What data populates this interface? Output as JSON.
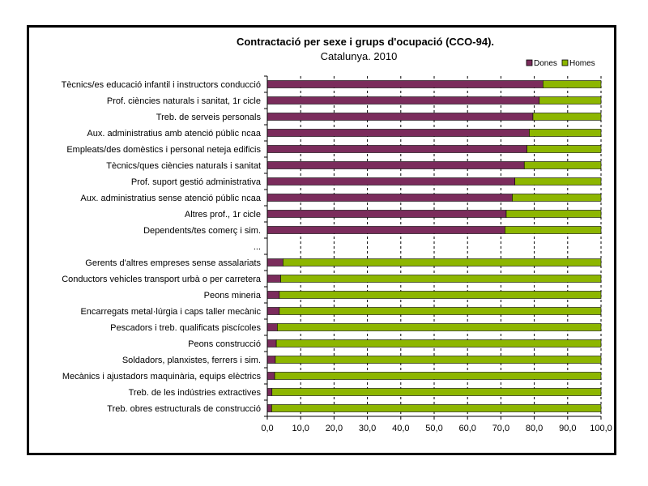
{
  "chart_data": {
    "type": "bar",
    "orientation": "horizontal",
    "stacked": true,
    "title": "Contractació per sexe i grups d'ocupació (CCO-94).",
    "subtitle": "Catalunya. 2010",
    "xlim": [
      0,
      100
    ],
    "x_ticks": [
      "0,0",
      "10,0",
      "20,0",
      "30,0",
      "40,0",
      "50,0",
      "60,0",
      "70,0",
      "80,0",
      "90,0",
      "100,0"
    ],
    "grid": "vertical dashed",
    "legend_position": "top-right",
    "categories": [
      "Tècnics/es educació infantil i instructors conducció",
      "Prof. ciències naturals i sanitat, 1r cicle",
      "Treb. de serveis personals",
      "Aux. administratius amb atenció públic ncaa",
      "Empleats/des domèstics i personal neteja edificis",
      "Tècnics/ques ciències naturals i sanitat",
      "Prof. suport gestió administrativa",
      "Aux. administratius sense atenció públic ncaa",
      "Altres prof., 1r cicle",
      "Dependents/tes comerç i sim.",
      "...",
      "Gerents d'altres empreses sense assalariats",
      "Conductors vehicles transport urbà o per carretera",
      "Peons mineria",
      "Encarregats metal·lúrgia i caps taller mecànic",
      "Pescadors i treb. qualificats piscícoles",
      "Peons construcció",
      "Soldadors, planxistes, ferrers i sim.",
      "Mecànics i ajustadors maquinària, equips elèctrics",
      "Treb. de les indústries extractives",
      "Treb. obres estructurals de construcció"
    ],
    "series": [
      {
        "name": "Dones",
        "color": "#7B2C5C",
        "values": [
          82.6,
          81.5,
          79.6,
          78.5,
          77.8,
          77.0,
          74.2,
          73.4,
          71.6,
          71.2,
          null,
          4.7,
          4.0,
          3.6,
          3.6,
          3.0,
          2.7,
          2.4,
          2.2,
          1.4,
          1.3
        ]
      },
      {
        "name": "Homes",
        "color": "#8DB600",
        "values": [
          17.4,
          18.5,
          20.4,
          21.5,
          22.2,
          23.0,
          25.8,
          26.6,
          28.4,
          28.8,
          null,
          95.3,
          96.0,
          96.4,
          96.4,
          97.0,
          97.3,
          97.6,
          97.8,
          98.6,
          98.7
        ]
      }
    ]
  }
}
